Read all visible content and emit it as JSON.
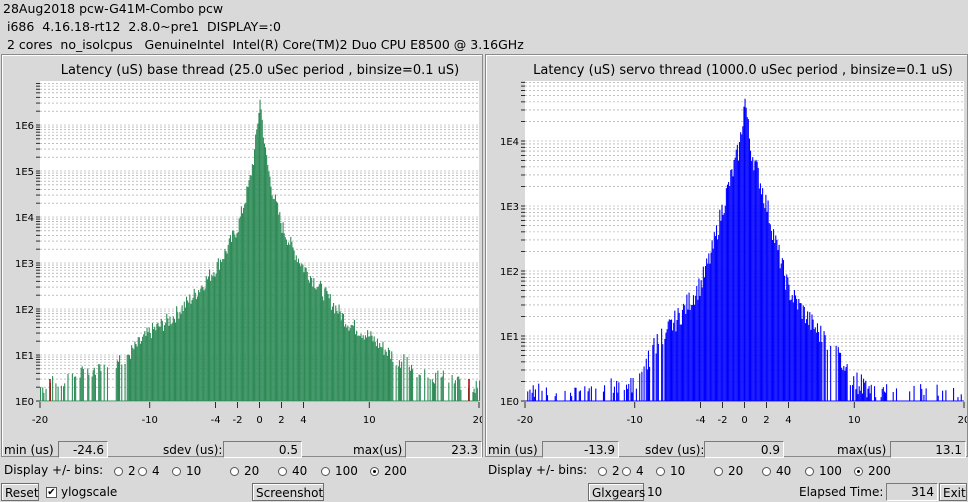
{
  "header": {
    "line1": "28Aug2018 pcw-G41M-Combo pcw",
    "line2": " i686  4.16.18-rt12  2.8.0~pre1  DISPLAY=:0",
    "line3": " 2 cores  no_isolcpus   GenuineIntel  Intel(R) Core(TM)2 Duo CPU E8500 @ 3.16GHz"
  },
  "panels": [
    {
      "title": "Latency (uS) base thread (25.0 uSec period , binsize=0.1 uS)",
      "color": "#2e8b57",
      "min_label": "min (us)",
      "min_value": "-24.6",
      "sdev_label": "sdev (us):",
      "sdev_value": "0.5",
      "max_label": "max(us)",
      "max_value": "23.3",
      "bins_label": "Display +/- bins:",
      "bin_options": [
        "2",
        "4",
        "10",
        "20",
        "40",
        "100",
        "200"
      ],
      "bins_selected": "200",
      "ytick_labels": [
        "1E0",
        "1E1",
        "1E2",
        "1E3",
        "1E4",
        "1E5",
        "1E6"
      ],
      "xtick_labels": [
        "-20",
        "-10",
        "-4",
        "-2",
        "0",
        "2",
        "4",
        "10",
        "20"
      ]
    },
    {
      "title": "Latency (uS) servo thread (1000.0 uSec period , binsize=0.1 uS)",
      "color": "#0000ff",
      "min_label": "min (us)",
      "min_value": "-13.9",
      "sdev_label": "sdev (us):",
      "sdev_value": "0.9",
      "max_label": "max(us)",
      "max_value": "13.1",
      "bins_label": "Display +/- bins:",
      "bin_options": [
        "2",
        "4",
        "10",
        "20",
        "40",
        "100",
        "200"
      ],
      "bins_selected": "200",
      "ytick_labels": [
        "1E0",
        "1E1",
        "1E2",
        "1E3",
        "1E4"
      ],
      "xtick_labels": [
        "-20",
        "-10",
        "-4",
        "-2",
        "0",
        "2",
        "4",
        "10",
        "20"
      ]
    }
  ],
  "chart_data": [
    {
      "type": "bar",
      "title": "Latency (uS) base thread (25.0 uSec period , binsize=0.1 uS)",
      "xlim": [
        -20,
        20
      ],
      "ylog": true,
      "ylim_log10": [
        0,
        6.6
      ],
      "peak_log10": 6.55,
      "envelope_log10": [
        [
          -20,
          0.3
        ],
        [
          -15,
          0.7
        ],
        [
          -12,
          1.0
        ],
        [
          -10,
          1.5
        ],
        [
          -8,
          1.8
        ],
        [
          -6,
          2.3
        ],
        [
          -4,
          2.9
        ],
        [
          -3,
          3.3
        ],
        [
          -2,
          3.8
        ],
        [
          -1,
          4.7
        ],
        [
          -0.5,
          5.4
        ],
        [
          0,
          6.55
        ],
        [
          0.5,
          5.4
        ],
        [
          1,
          4.7
        ],
        [
          2,
          3.8
        ],
        [
          3,
          3.3
        ],
        [
          4,
          2.9
        ],
        [
          6,
          2.3
        ],
        [
          8,
          1.7
        ],
        [
          10,
          1.4
        ],
        [
          12,
          1.0
        ],
        [
          15,
          0.6
        ],
        [
          20,
          0.3
        ]
      ]
    },
    {
      "type": "bar",
      "title": "Latency (uS) servo thread (1000.0 uSec period , binsize=0.1 uS)",
      "xlim": [
        -20,
        20
      ],
      "ylog": true,
      "ylim_log10": [
        0,
        4.7
      ],
      "peak_log10": 4.65,
      "envelope_log10": [
        [
          -14,
          0.1
        ],
        [
          -10,
          0.3
        ],
        [
          -8,
          0.9
        ],
        [
          -6,
          1.3
        ],
        [
          -4,
          1.8
        ],
        [
          -3,
          2.3
        ],
        [
          -2,
          3.0
        ],
        [
          -1,
          3.6
        ],
        [
          -0.5,
          3.9
        ],
        [
          0,
          4.65
        ],
        [
          0.5,
          3.9
        ],
        [
          1,
          3.6
        ],
        [
          2,
          3.0
        ],
        [
          3,
          2.3
        ],
        [
          4,
          1.7
        ],
        [
          6,
          1.2
        ],
        [
          8,
          0.8
        ],
        [
          10,
          0.3
        ],
        [
          13,
          0.1
        ]
      ]
    }
  ],
  "bottom": {
    "reset_label": "Reset",
    "ylogscale_label": "ylogscale",
    "ylogscale_checked": true,
    "screenshot_label": "Screenshot",
    "glxgears_label": "Glxgears",
    "glxgears_count": "10",
    "elapsed_label": "Elapsed Time:",
    "elapsed_value": "314",
    "exit_label": "Exit"
  }
}
